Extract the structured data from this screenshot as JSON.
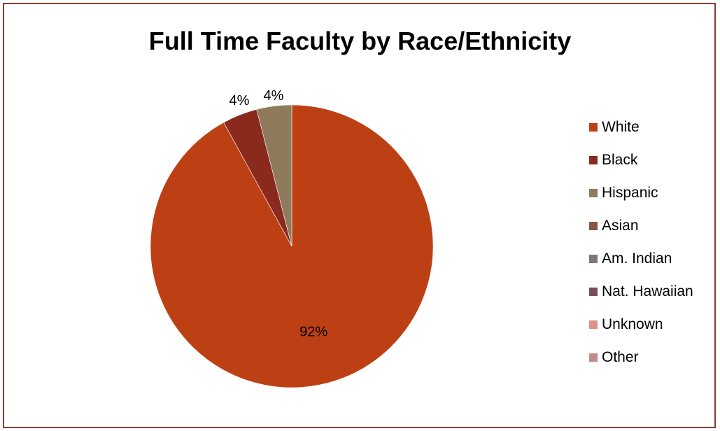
{
  "chart_data": {
    "type": "pie",
    "title": "Full Time Faculty by Race/Ethnicity",
    "legend_position": "right",
    "categories": [
      "White",
      "Black",
      "Hispanic",
      "Asian",
      "Am. Indian",
      "Nat. Hawaiian",
      "Unknown",
      "Other"
    ],
    "values": [
      92,
      4,
      4,
      0,
      0,
      0,
      0,
      0
    ],
    "labels": [
      "92%",
      "4%",
      "4%"
    ],
    "colors": [
      "#bd4014",
      "#8a2a1d",
      "#8f7b5c",
      "#8a5547",
      "#7e7676",
      "#7a4e59",
      "#e0918a",
      "#c58a89"
    ]
  }
}
